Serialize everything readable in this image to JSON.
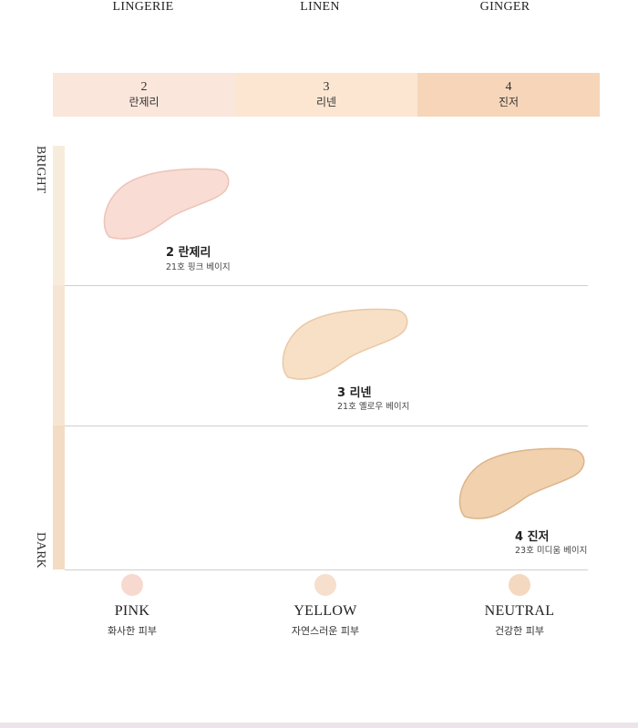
{
  "top_labels": [
    "LINGERIE",
    "LINEN",
    "GINGER"
  ],
  "shades": [
    {
      "num": "2",
      "name": "란제리",
      "color": "#fbe6dc"
    },
    {
      "num": "3",
      "name": "리넨",
      "color": "#fce6d2"
    },
    {
      "num": "4",
      "name": "진저",
      "color": "#f6d5b9"
    }
  ],
  "axis": {
    "bright": "BRIGHT",
    "dark": "DARK",
    "colors": [
      "#f7ecdb",
      "#f6e5d2",
      "#f3dcc3"
    ]
  },
  "swatches": [
    {
      "title": "2 란제리",
      "sub": "21호 핑크 베이지",
      "color": "#f9dcd3",
      "shade": "#ecc3b8"
    },
    {
      "title": "3 리넨",
      "sub": "21호 옐로우 베이지",
      "color": "#f8e0c6",
      "shade": "#e9c8a6"
    },
    {
      "title": "4 진저",
      "sub": "23호 미디움 베이지",
      "color": "#f1d1ae",
      "shade": "#dcb48b"
    }
  ],
  "tones": [
    {
      "name": "PINK",
      "desc": "화사한 피부",
      "color": "#f7d9d0"
    },
    {
      "name": "YELLOW",
      "desc": "자연스러운 피부",
      "color": "#f6dfcc"
    },
    {
      "name": "NEUTRAL",
      "desc": "건강한 피부",
      "color": "#f4d8c0"
    }
  ]
}
